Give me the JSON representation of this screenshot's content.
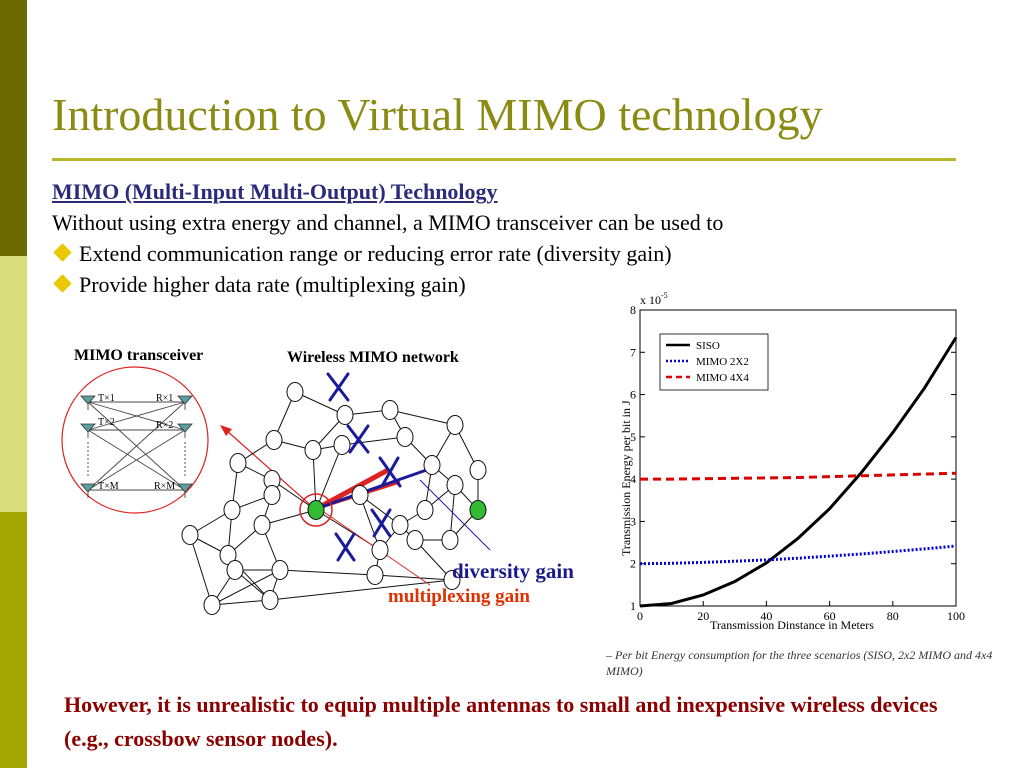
{
  "title": "Introduction to Virtual MIMO technology",
  "heading": "MIMO (Multi-Input Multi-Output) Technology",
  "intro": "Without using extra energy and channel, a MIMO transceiver can be used to",
  "bullets": [
    "Extend communication range or reducing error rate (diversity gain)",
    "Provide higher data rate (multiplexing gain)"
  ],
  "diagram": {
    "transceiver_label": "MIMO transceiver",
    "network_label": "Wireless MIMO  network",
    "diversity_label": "diversity gain",
    "multiplexing_label": "multiplexing gain",
    "antenna_labels": [
      "T×1",
      "T×2",
      "T×M",
      "R×1",
      "R×2",
      "R×M"
    ]
  },
  "chart_data": {
    "type": "line",
    "xlabel": "Transmission Dinstance in Meters",
    "ylabel": "Transmission Energy per bit in J",
    "y_multiplier": "x 10",
    "y_exponent": "-5",
    "xlim": [
      0,
      100
    ],
    "ylim": [
      1,
      8
    ],
    "x_ticks": [
      0,
      20,
      40,
      60,
      80,
      100
    ],
    "y_ticks": [
      1,
      2,
      3,
      4,
      5,
      6,
      7,
      8
    ],
    "legend_position": "top-left",
    "series": [
      {
        "name": "SISO",
        "color": "#000000",
        "style": "solid",
        "x": [
          0,
          10,
          20,
          30,
          40,
          50,
          60,
          70,
          80,
          90,
          100
        ],
        "y": [
          1.0,
          1.06,
          1.26,
          1.58,
          2.02,
          2.6,
          3.3,
          4.15,
          5.1,
          6.15,
          7.35
        ]
      },
      {
        "name": "MIMO 2X2",
        "color": "#0000cc",
        "style": "dotted",
        "x": [
          0,
          10,
          20,
          30,
          40,
          50,
          60,
          70,
          80,
          90,
          100
        ],
        "y": [
          2.0,
          2.01,
          2.03,
          2.06,
          2.09,
          2.13,
          2.18,
          2.23,
          2.29,
          2.35,
          2.42
        ]
      },
      {
        "name": "MIMO 4X4",
        "color": "#dd0000",
        "style": "dashed",
        "x": [
          0,
          10,
          20,
          30,
          40,
          50,
          60,
          70,
          80,
          90,
          100
        ],
        "y": [
          4.0,
          4.0,
          4.01,
          4.02,
          4.03,
          4.04,
          4.06,
          4.08,
          4.1,
          4.12,
          4.14
        ]
      }
    ]
  },
  "caption": "– Per bit Energy consumption for the three scenarios (SISO, 2x2 MIMO and 4x4 MIMO)",
  "footer": "However, it is unrealistic to equip multiple antennas to small and inexpensive wireless devices (e.g., crossbow sensor nodes)."
}
